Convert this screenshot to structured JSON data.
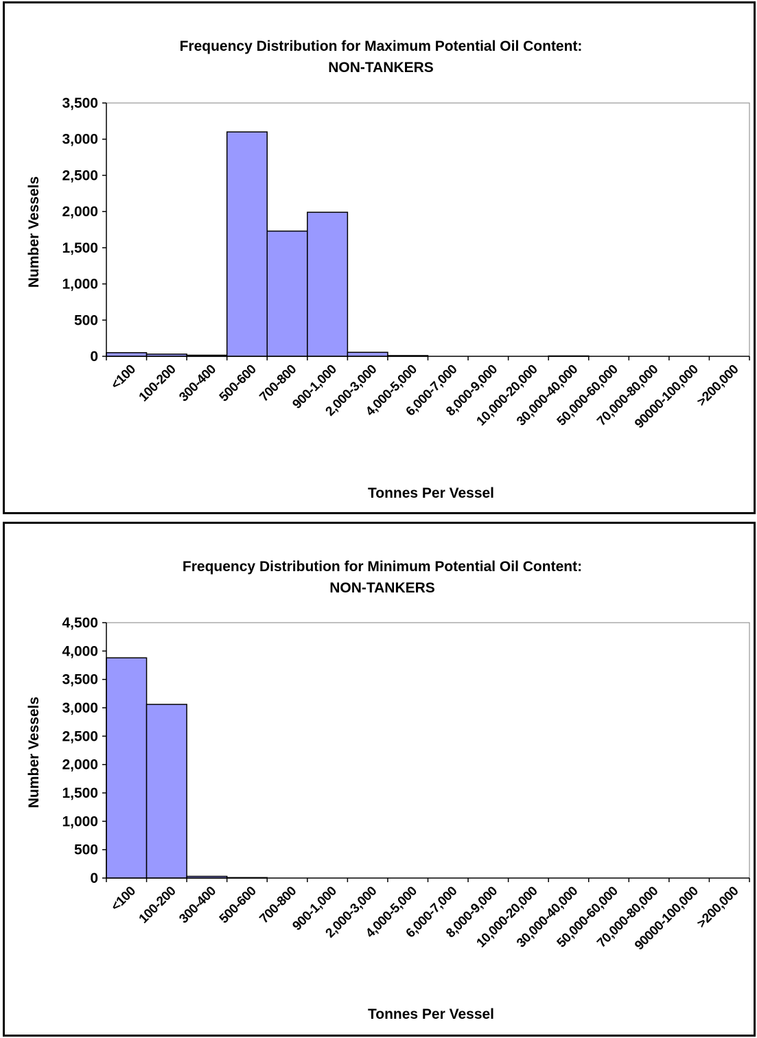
{
  "colors": {
    "bar_fill": "#9999ff",
    "bar_stroke": "#000000",
    "plot_border": "#808080"
  },
  "chart_data": [
    {
      "type": "bar",
      "title": "Frequency Distribution for Maximum Potential Oil Content:",
      "subtitle": "NON-TANKERS",
      "xlabel": "Tonnes Per Vessel",
      "ylabel": "Number Vessels",
      "ylim": [
        0,
        3500
      ],
      "yticks": [
        "0",
        "500",
        "1,000",
        "1,500",
        "2,000",
        "2,500",
        "3,000",
        "3,500"
      ],
      "grid": false,
      "categories": [
        "<100",
        "100-200",
        "300-400",
        "500-600",
        "700-800",
        "900-1,000",
        "2,000-3,000",
        "4,000-5,000",
        "6,000-7,000",
        "8,000-9,000",
        "10,000-20,000",
        "30,000-40,000",
        "50,000-60,000",
        "70,000-80,000",
        "90000-100,000",
        ">200,000"
      ],
      "values": [
        50,
        30,
        15,
        3100,
        1730,
        1990,
        55,
        10,
        0,
        0,
        0,
        5,
        0,
        0,
        0,
        0
      ]
    },
    {
      "type": "bar",
      "title": "Frequency Distribution for Minimum Potential Oil Content:",
      "subtitle": "NON-TANKERS",
      "xlabel": "Tonnes Per Vessel",
      "ylabel": "Number Vessels",
      "ylim": [
        0,
        4500
      ],
      "yticks": [
        "0",
        "500",
        "1,000",
        "1,500",
        "2,000",
        "2,500",
        "3,000",
        "3,500",
        "4,000",
        "4,500"
      ],
      "grid": false,
      "categories": [
        "<100",
        "100-200",
        "300-400",
        "500-600",
        "700-800",
        "900-1,000",
        "2,000-3,000",
        "4,000-5,000",
        "6,000-7,000",
        "8,000-9,000",
        "10,000-20,000",
        "30,000-40,000",
        "50,000-60,000",
        "70,000-80,000",
        "90000-100,000",
        ">200,000"
      ],
      "values": [
        3880,
        3060,
        30,
        8,
        0,
        0,
        0,
        0,
        0,
        0,
        0,
        0,
        0,
        0,
        0,
        0
      ]
    }
  ]
}
